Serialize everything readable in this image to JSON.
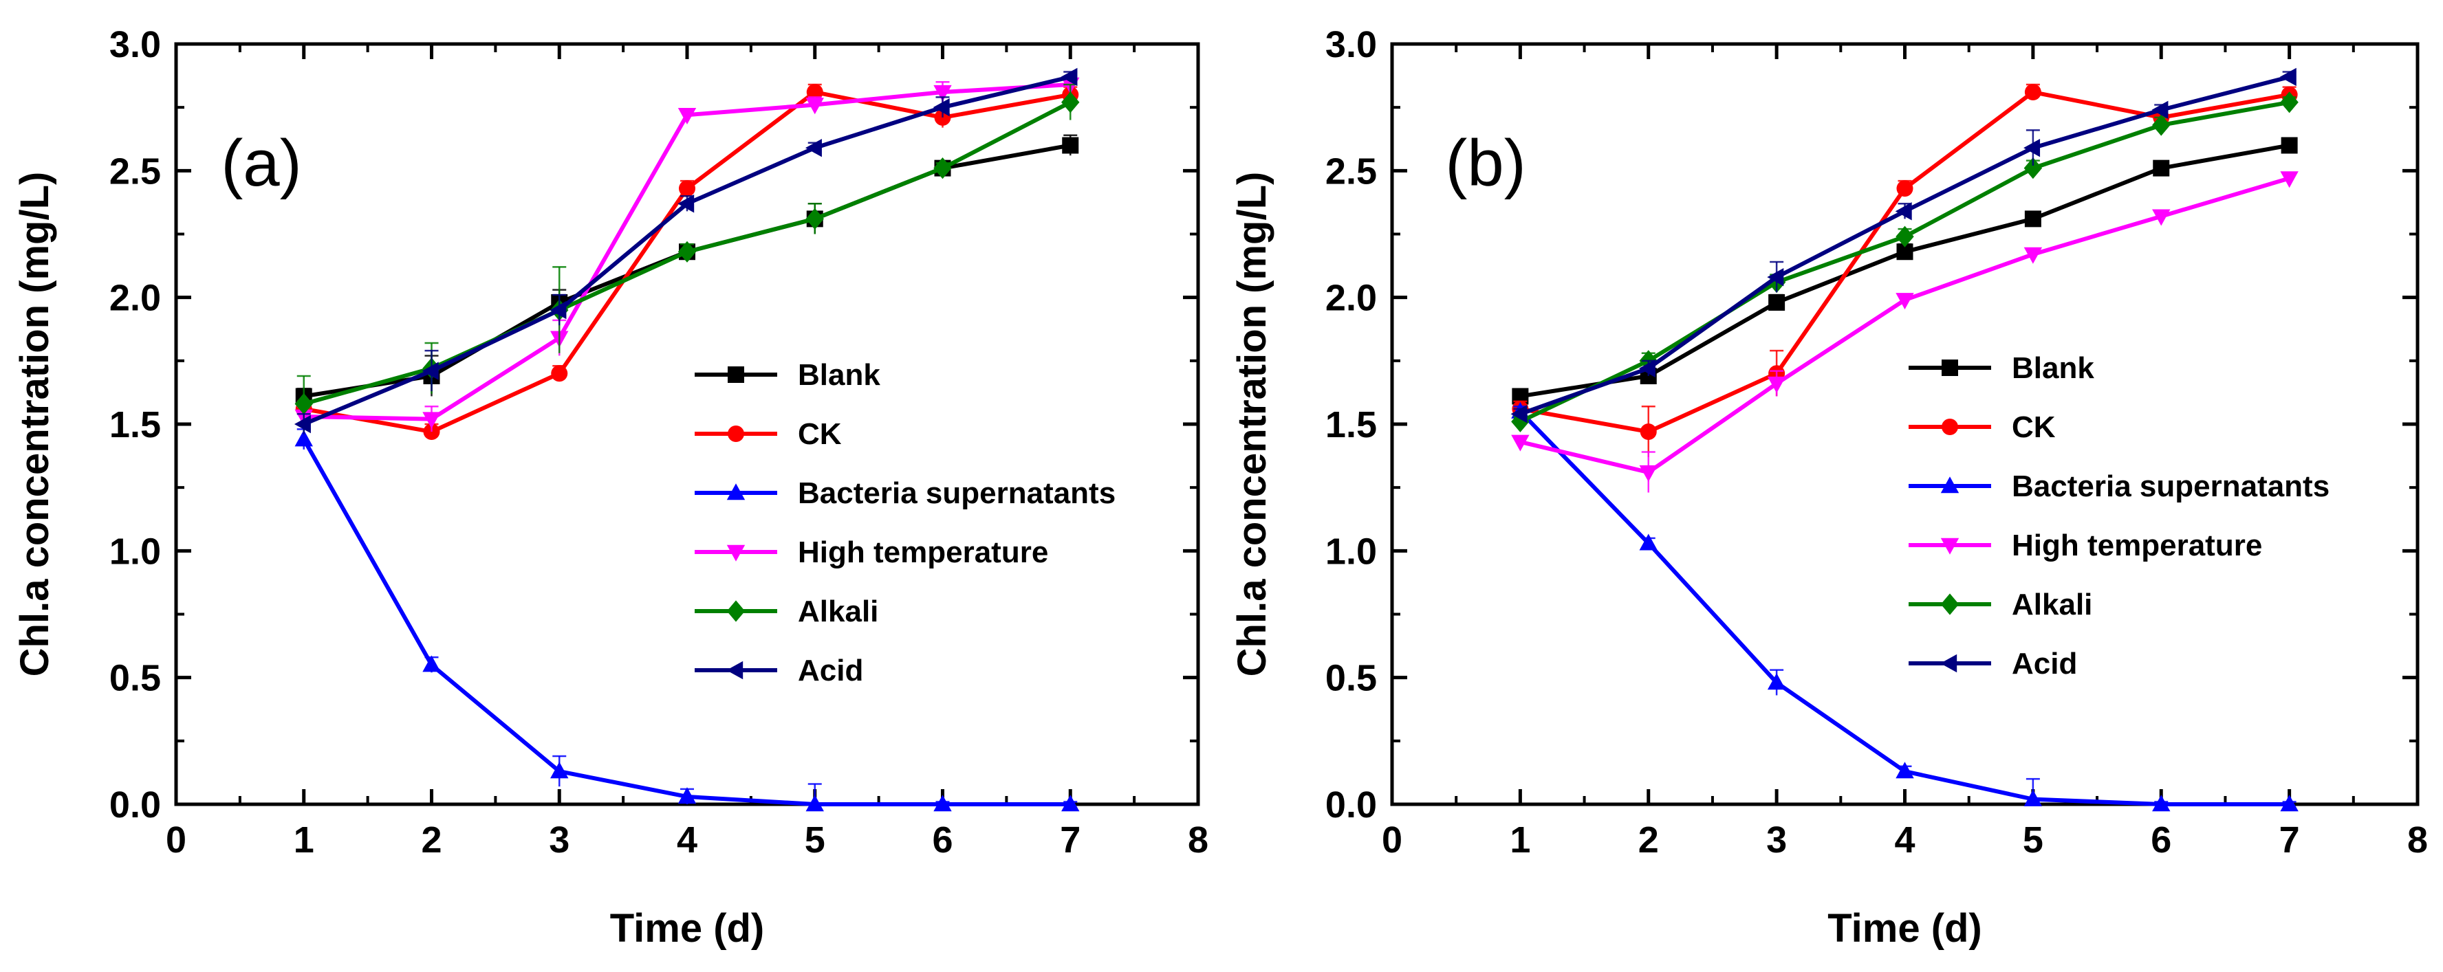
{
  "chart_data": [
    {
      "type": "line",
      "panel_label": "(a)",
      "xlabel": "Time (d)",
      "ylabel": "Chl.a concentration (mg/L)",
      "xlim": [
        0,
        8
      ],
      "ylim": [
        0,
        3.0
      ],
      "xticks": [
        0,
        1,
        2,
        3,
        4,
        5,
        6,
        7,
        8
      ],
      "xtick_labels": [
        "0",
        "1",
        "2",
        "3",
        "4",
        "5",
        "6",
        "7",
        "8"
      ],
      "yticks": [
        0,
        0.5,
        1.0,
        1.5,
        2.0,
        2.5,
        3.0
      ],
      "ytick_labels": [
        "0.0",
        "0.5",
        "1.0",
        "1.5",
        "2.0",
        "2.5",
        "3.0"
      ],
      "grid": false,
      "legend_position": "center-right",
      "x": [
        1,
        2,
        3,
        4,
        5,
        6,
        7
      ],
      "series": [
        {
          "name": "Blank",
          "color": "#000000",
          "marker": "square",
          "values": [
            1.61,
            1.69,
            1.98,
            2.18,
            2.31,
            2.51,
            2.6
          ],
          "errors": [
            0.03,
            0.08,
            0.05,
            0.02,
            0.06,
            0.02,
            0.04
          ]
        },
        {
          "name": "CK",
          "color": "#ff0000",
          "marker": "circle",
          "values": [
            1.56,
            1.47,
            1.7,
            2.43,
            2.81,
            2.71,
            2.8
          ],
          "errors": [
            0.03,
            0.03,
            0.03,
            0.03,
            0.03,
            0.04,
            0.03
          ]
        },
        {
          "name": "Bacteria supernatants",
          "color": "#0000ff",
          "marker": "triangle-up",
          "values": [
            1.44,
            0.55,
            0.13,
            0.03,
            0.0,
            0.0,
            0.0
          ],
          "errors": [
            0.04,
            0.03,
            0.06,
            0.03,
            0.08,
            0.01,
            0.01
          ]
        },
        {
          "name": "High temperature",
          "color": "#ff00ff",
          "marker": "triangle-down",
          "values": [
            1.53,
            1.52,
            1.84,
            2.72,
            2.76,
            2.81,
            2.84
          ],
          "errors": [
            0.04,
            0.05,
            0.07,
            0.02,
            0.03,
            0.04,
            0.02
          ]
        },
        {
          "name": "Alkali",
          "color": "#008000",
          "marker": "diamond",
          "values": [
            1.58,
            1.72,
            1.95,
            2.18,
            2.31,
            2.51,
            2.77
          ],
          "errors": [
            0.11,
            0.1,
            0.17,
            0.03,
            0.06,
            0.02,
            0.07
          ]
        },
        {
          "name": "Acid",
          "color": "#000080",
          "marker": "triangle-left",
          "values": [
            1.5,
            1.71,
            1.95,
            2.37,
            2.59,
            2.75,
            2.87
          ],
          "errors": [
            0.04,
            0.08,
            0.06,
            0.03,
            0.02,
            0.04,
            0.02
          ]
        }
      ]
    },
    {
      "type": "line",
      "panel_label": "(b)",
      "xlabel": "Time (d)",
      "ylabel": "Chl.a concentration (mg/L)",
      "xlim": [
        0,
        8
      ],
      "ylim": [
        0,
        3.0
      ],
      "xticks": [
        0,
        1,
        2,
        3,
        4,
        5,
        6,
        7,
        8
      ],
      "xtick_labels": [
        "0",
        "1",
        "2",
        "3",
        "4",
        "5",
        "6",
        "7",
        "8"
      ],
      "yticks": [
        0,
        0.5,
        1.0,
        1.5,
        2.0,
        2.5,
        3.0
      ],
      "ytick_labels": [
        "0.0",
        "0.5",
        "1.0",
        "1.5",
        "2.0",
        "2.5",
        "3.0"
      ],
      "grid": false,
      "legend_position": "center-right",
      "x": [
        1,
        2,
        3,
        4,
        5,
        6,
        7
      ],
      "series": [
        {
          "name": "Blank",
          "color": "#000000",
          "marker": "square",
          "values": [
            1.61,
            1.69,
            1.98,
            2.18,
            2.31,
            2.51,
            2.6
          ],
          "errors": [
            0.02,
            0.03,
            0.03,
            0.03,
            0.02,
            0.02,
            0.02
          ]
        },
        {
          "name": "CK",
          "color": "#ff0000",
          "marker": "circle",
          "values": [
            1.56,
            1.47,
            1.7,
            2.43,
            2.81,
            2.71,
            2.8
          ],
          "errors": [
            0.03,
            0.1,
            0.09,
            0.03,
            0.03,
            0.03,
            0.03
          ]
        },
        {
          "name": "Bacteria supernatants",
          "color": "#0000ff",
          "marker": "triangle-up",
          "values": [
            1.55,
            1.03,
            0.48,
            0.13,
            0.02,
            0.0,
            0.0
          ],
          "errors": [
            0.02,
            0.02,
            0.05,
            0.02,
            0.08,
            0.01,
            0.01
          ]
        },
        {
          "name": "High temperature",
          "color": "#ff00ff",
          "marker": "triangle-down",
          "values": [
            1.43,
            1.31,
            1.66,
            1.99,
            2.17,
            2.32,
            2.47
          ],
          "errors": [
            0.02,
            0.08,
            0.05,
            0.02,
            0.02,
            0.02,
            0.02
          ]
        },
        {
          "name": "Alkali",
          "color": "#008000",
          "marker": "diamond",
          "values": [
            1.51,
            1.75,
            2.06,
            2.24,
            2.51,
            2.68,
            2.77
          ],
          "errors": [
            0.02,
            0.03,
            0.03,
            0.03,
            0.03,
            0.03,
            0.02
          ]
        },
        {
          "name": "Acid",
          "color": "#000080",
          "marker": "triangle-left",
          "values": [
            1.54,
            1.72,
            2.08,
            2.34,
            2.59,
            2.74,
            2.87
          ],
          "errors": [
            0.02,
            0.03,
            0.06,
            0.03,
            0.07,
            0.02,
            0.02
          ]
        }
      ]
    }
  ]
}
